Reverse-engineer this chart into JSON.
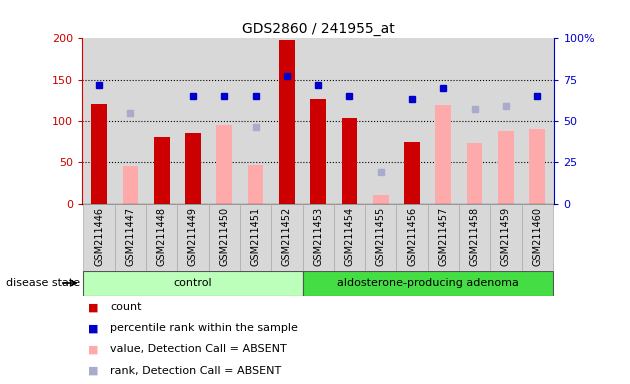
{
  "title": "GDS2860 / 241955_at",
  "samples": [
    "GSM211446",
    "GSM211447",
    "GSM211448",
    "GSM211449",
    "GSM211450",
    "GSM211451",
    "GSM211452",
    "GSM211453",
    "GSM211454",
    "GSM211455",
    "GSM211456",
    "GSM211457",
    "GSM211458",
    "GSM211459",
    "GSM211460"
  ],
  "count_values": [
    121,
    0,
    80,
    85,
    0,
    0,
    198,
    126,
    103,
    0,
    75,
    0,
    0,
    0,
    0
  ],
  "percentile_values": [
    143,
    0,
    0,
    130,
    130,
    130,
    155,
    143,
    130,
    0,
    126,
    140,
    0,
    0,
    130
  ],
  "absent_value_values": [
    0,
    46,
    0,
    0,
    95,
    47,
    0,
    0,
    0,
    10,
    0,
    119,
    73,
    88,
    90
  ],
  "absent_rank_values": [
    0,
    110,
    0,
    0,
    0,
    93,
    0,
    0,
    0,
    38,
    0,
    0,
    115,
    118,
    0
  ],
  "control_count": 7,
  "adenoma_count": 8,
  "ylim_left": [
    0,
    200
  ],
  "ylim_right": [
    0,
    100
  ],
  "yticks_left": [
    0,
    50,
    100,
    150,
    200
  ],
  "yticks_right": [
    0,
    25,
    50,
    75,
    100
  ],
  "ytick_labels_left": [
    "0",
    "50",
    "100",
    "150",
    "200"
  ],
  "ytick_labels_right": [
    "0",
    "25",
    "50",
    "75",
    "100%"
  ],
  "color_count": "#cc0000",
  "color_percentile": "#0000cc",
  "color_absent_value": "#ffaaaa",
  "color_absent_rank": "#aaaacc",
  "control_color": "#bbffbb",
  "adenoma_color": "#44dd44",
  "group_label_control": "control",
  "group_label_adenoma": "aldosterone-producing adenoma",
  "disease_state_label": "disease state",
  "legend_items": [
    "count",
    "percentile rank within the sample",
    "value, Detection Call = ABSENT",
    "rank, Detection Call = ABSENT"
  ]
}
